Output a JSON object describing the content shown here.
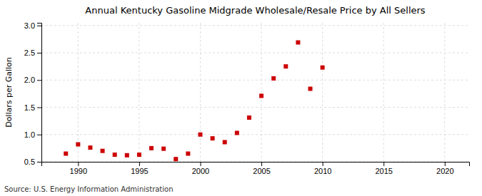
{
  "chart_data": {
    "type": "scatter",
    "title": "Annual Kentucky Gasoline Midgrade Wholesale/Resale Price by All Sellers",
    "y_label": "Dollars per Gallon",
    "source": "Source: U.S. Energy Information Administration",
    "x": [
      1989,
      1990,
      1991,
      1992,
      1993,
      1994,
      1995,
      1996,
      1997,
      1998,
      1999,
      2000,
      2001,
      2002,
      2003,
      2004,
      2005,
      2006,
      2007,
      2008,
      2009,
      2010
    ],
    "values": [
      0.65,
      0.82,
      0.76,
      0.7,
      0.63,
      0.62,
      0.63,
      0.75,
      0.74,
      0.55,
      0.65,
      1.0,
      0.93,
      0.86,
      1.03,
      1.31,
      1.71,
      2.03,
      2.25,
      2.69,
      1.84,
      2.23
    ],
    "color": "#cc0000",
    "marker": "square",
    "xlim": [
      1987,
      2022
    ],
    "xticks": [
      1990,
      1995,
      2000,
      2005,
      2010,
      2015,
      2020
    ],
    "ylim": [
      0.5,
      3.05
    ],
    "yticks": [
      0.5,
      {
        "value": 1.0,
        "label": "1.0"
      },
      1.5,
      {
        "value": 2.0,
        "label": "2.0"
      },
      2.5,
      {
        "value": 3.0,
        "label": "3.0"
      }
    ],
    "grid": true
  }
}
